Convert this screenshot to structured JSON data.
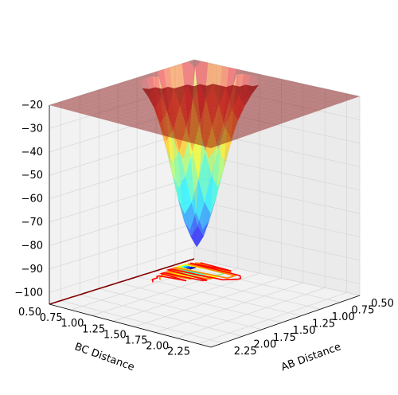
{
  "chart_data": {
    "type": "surface",
    "title": "",
    "xlabel": "AB Distance",
    "ylabel": "BC Distance",
    "zlabel": "",
    "x_ticks": [
      "0.50",
      "0.75",
      "1.00",
      "1.25",
      "1.50",
      "1.75",
      "2.00",
      "2.25"
    ],
    "y_ticks": [
      "0.50",
      "0.75",
      "1.00",
      "1.25",
      "1.50",
      "1.75",
      "2.00",
      "2.25"
    ],
    "z_ticks": [
      "−20",
      "−30",
      "−40",
      "−50",
      "−60",
      "−70",
      "−80",
      "−90",
      "−100"
    ],
    "xlim": [
      0.5,
      2.4
    ],
    "ylim": [
      0.5,
      2.4
    ],
    "zlim": [
      -105,
      -20
    ],
    "grid": true,
    "colormap": "jet",
    "surface_opacity": 0.45,
    "surface_z_range": [
      -100,
      -20
    ],
    "contour_levels": 9,
    "contour_projection": "floor",
    "colors": {
      "pane": "#f2f2f2",
      "pane_side": "#ebebeb",
      "grid": "#d9d9d9"
    }
  }
}
